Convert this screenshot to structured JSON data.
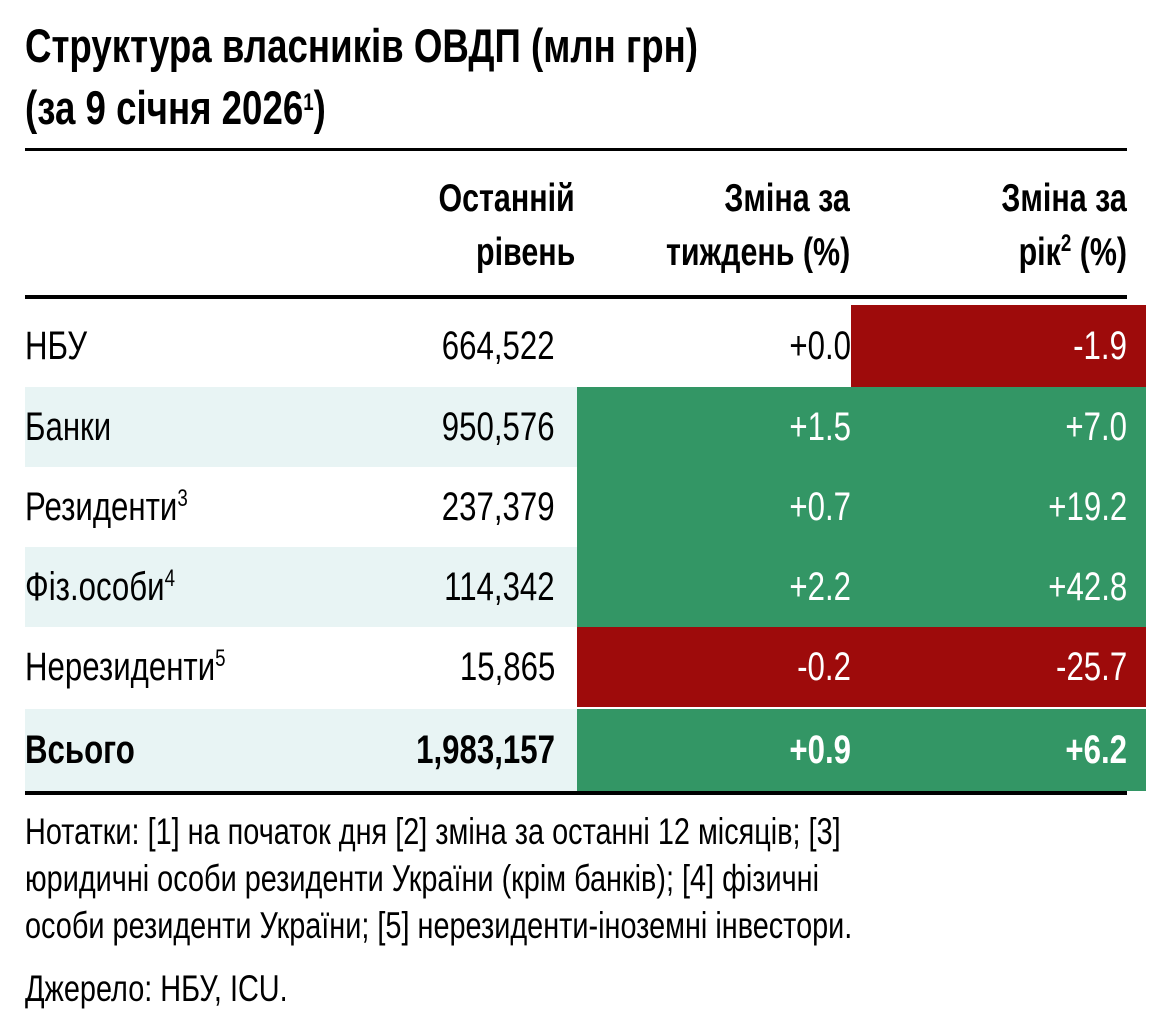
{
  "title": {
    "line1": "Структура власників ОВДП (млн грн)",
    "line2_prefix": "(за 9 січня 2026",
    "line2_sup": "1",
    "line2_suffix": ")"
  },
  "headers": {
    "level": [
      "Останній",
      "рівень"
    ],
    "week": [
      "Зміна за",
      "тиждень (%)"
    ],
    "year": {
      "line1": "Зміна за",
      "line2_prefix": "рік",
      "sup": "2",
      "line2_suffix": " (%)"
    }
  },
  "rows": [
    {
      "label": "НБУ",
      "sup": "",
      "level": "664,522",
      "week": "+0.0",
      "year": "-1.9"
    },
    {
      "label": "Банки",
      "sup": "",
      "level": "950,576",
      "week": "+1.5",
      "year": "+7.0"
    },
    {
      "label": "Резиденти",
      "sup": "3",
      "level": "237,379",
      "week": "+0.7",
      "year": "+19.2"
    },
    {
      "label": "Фіз.особи",
      "sup": "4",
      "level": "114,342",
      "week": "+2.2",
      "year": "+42.8"
    },
    {
      "label": "Нерезиденти",
      "sup": "5",
      "level": "15,865",
      "week": "-0.2",
      "year": "-25.7"
    },
    {
      "label": "Всього",
      "sup": "",
      "level": "1,983,157",
      "week": "+0.9",
      "year": "+6.2"
    }
  ],
  "colors": {
    "positive": "#339665",
    "negative": "#9e0b0b",
    "band": "#e8f4f4"
  },
  "notes": [
    "Нотатки: [1] на початок дня [2] зміна за останні 12 місяців; [3]",
    "юридичні особи  резиденти України (крім банків); [4] фізичні",
    "особи резиденти України; [5] нерезиденти-іноземні інвестори."
  ],
  "source": "Джерело: НБУ, ICU."
}
